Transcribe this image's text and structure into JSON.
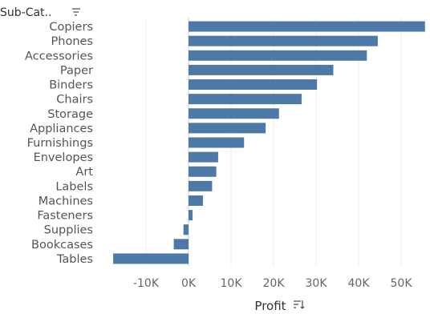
{
  "header": {
    "dimension_label": "Sub-Cat..",
    "sort_icon": "sort-descending-icon"
  },
  "axis": {
    "title": "Profit",
    "sort_icon": "sort-icon"
  },
  "colors": {
    "bar": "#4e79a7",
    "grid": "#ececec",
    "zero_line": "#d0d0d0"
  },
  "chart_data": {
    "type": "bar",
    "orientation": "horizontal",
    "xlabel": "Profit",
    "ylabel": "Sub-Cat..",
    "categories": [
      "Copiers",
      "Phones",
      "Accessories",
      "Paper",
      "Binders",
      "Chairs",
      "Storage",
      "Appliances",
      "Furnishings",
      "Envelopes",
      "Art",
      "Labels",
      "Machines",
      "Fasteners",
      "Supplies",
      "Bookcases",
      "Tables"
    ],
    "values": [
      55618,
      44516,
      41937,
      34054,
      30222,
      26590,
      21279,
      18138,
      13059,
      6964,
      6528,
      5546,
      3385,
      950,
      -1189,
      -3473,
      -17725
    ],
    "xlim": [
      -20000,
      56000
    ],
    "xticks": [
      -10000,
      0,
      10000,
      20000,
      30000,
      40000,
      50000
    ],
    "xtick_labels": [
      "-10K",
      "0K",
      "10K",
      "20K",
      "30K",
      "40K",
      "50K"
    ],
    "grid": true
  }
}
